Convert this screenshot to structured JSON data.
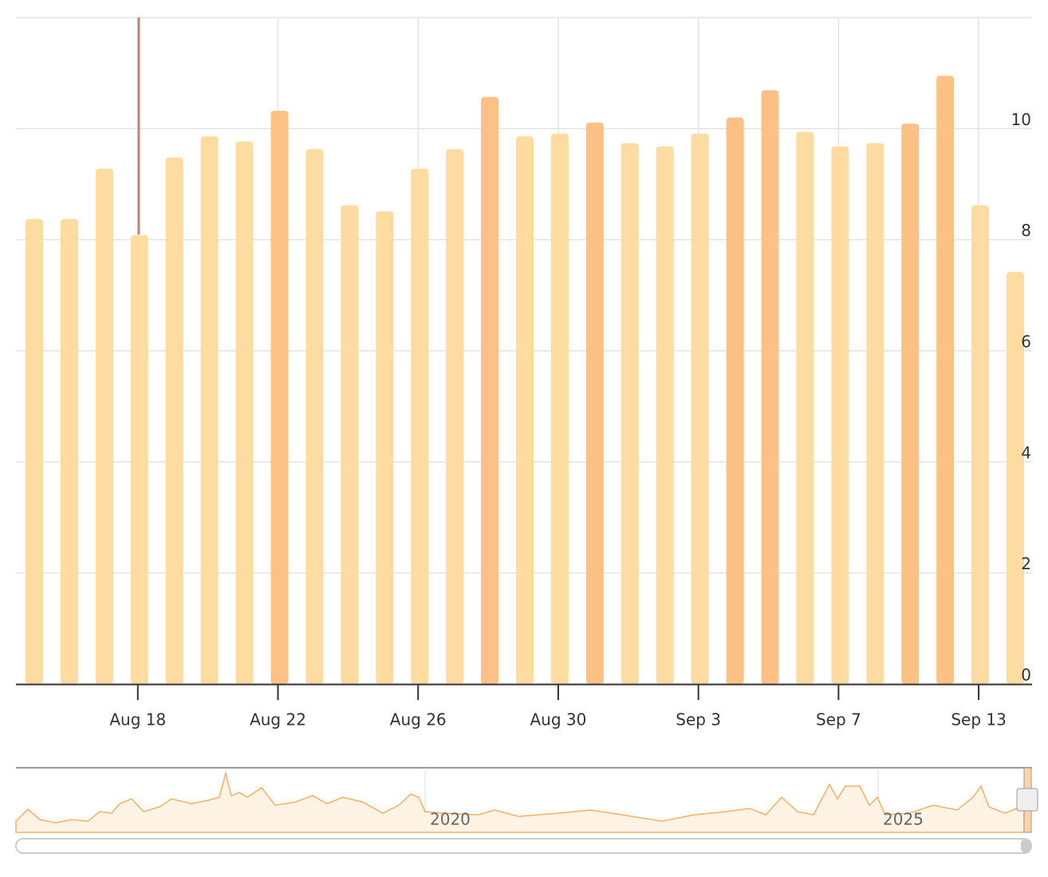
{
  "chart_data": {
    "type": "bar",
    "categories": [
      null,
      null,
      null,
      "Aug 18",
      null,
      null,
      null,
      "Aug 22",
      null,
      null,
      null,
      "Aug 26",
      null,
      null,
      null,
      "Aug 30",
      null,
      null,
      null,
      "Sep 3",
      null,
      null,
      null,
      "Sep 7",
      null,
      null,
      null,
      "Sep 13",
      null
    ],
    "values": [
      8.37,
      8.37,
      9.28,
      8.08,
      9.48,
      9.86,
      9.77,
      10.32,
      9.63,
      8.62,
      8.51,
      9.28,
      9.63,
      10.57,
      9.86,
      9.91,
      10.11,
      9.74,
      9.68,
      9.91,
      10.2,
      10.69,
      9.94,
      9.68,
      9.74,
      10.09,
      10.95,
      8.62,
      7.42
    ],
    "colors": [
      "#fedba0",
      "#fedba0",
      "#fedba0",
      "#fedba0",
      "#fedba0",
      "#fedba0",
      "#fedba0",
      "#fdc185",
      "#fedba0",
      "#fedba0",
      "#fedba0",
      "#fedba0",
      "#fedba0",
      "#fdc185",
      "#fedba0",
      "#fedba0",
      "#fdc185",
      "#fedba0",
      "#fedba0",
      "#fedba0",
      "#fdc185",
      "#fdc185",
      "#fedba0",
      "#fedba0",
      "#fedba0",
      "#fdc185",
      "#fdc185",
      "#fedba0",
      "#fedba0"
    ],
    "ylim": [
      0,
      12
    ],
    "yticks": [
      0,
      2,
      4,
      6,
      8,
      10
    ],
    "grid": true,
    "navigator": {
      "labels": [
        "2020",
        "2025"
      ]
    }
  }
}
